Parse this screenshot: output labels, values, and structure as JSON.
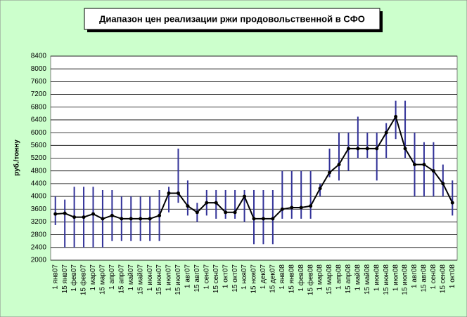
{
  "chart_data": {
    "type": "line-range",
    "title": "Диапазон цен реализации ржи продовольственной в СФО",
    "y_label": "руб./тонну",
    "categories": [
      "1 янв07",
      "15 янв07",
      "1 фев07",
      "15 фев07",
      "1 мар07",
      "15 мар07",
      "1 апр07",
      "15 апр07",
      "1 май07",
      "15 май07",
      "1 июн07",
      "15 июн07",
      "1 июл07",
      "15 июл07",
      "1 авг07",
      "15 авг07",
      "1 сен07",
      "15 сен07",
      "1 окт07",
      "15 окт07",
      "1 ноя07",
      "15 ноя07",
      "1 дек07",
      "15 дек07",
      "1 янв08",
      "15 янв08",
      "1 фев08",
      "15 фев08",
      "1 мар08",
      "15 мар08",
      "1 апр08",
      "15 апр08",
      "1 май08",
      "15 май08",
      "1 июн08",
      "15 июн08",
      "1 июл08",
      "15 июл08",
      "1 авг08",
      "15 авг08",
      "1 сен08",
      "15 сен08",
      "1 окт08"
    ],
    "values": [
      3450,
      3470,
      3350,
      3350,
      3450,
      3300,
      3400,
      3300,
      3300,
      3300,
      3300,
      3400,
      4100,
      4100,
      3700,
      3500,
      3800,
      3800,
      3500,
      3500,
      4000,
      3300,
      3300,
      3300,
      3600,
      3650,
      3650,
      3700,
      4250,
      4750,
      5000,
      5500,
      5500,
      5500,
      5500,
      6000,
      6500,
      5500,
      5000,
      5000,
      4800,
      4400,
      3800
    ],
    "high": [
      4000,
      3900,
      4300,
      4300,
      4300,
      4200,
      4200,
      4000,
      4000,
      4000,
      4000,
      4200,
      4300,
      5500,
      4500,
      3800,
      4200,
      4200,
      4200,
      4200,
      4200,
      4200,
      4200,
      4200,
      4800,
      4800,
      4800,
      4800,
      4400,
      5500,
      6000,
      6000,
      6500,
      6000,
      6000,
      6300,
      7000,
      7000,
      6000,
      5700,
      5700,
      5000,
      4500
    ],
    "low": [
      3100,
      2400,
      2400,
      2400,
      2400,
      2400,
      2600,
      2600,
      2600,
      2600,
      2600,
      2600,
      3500,
      3800,
      3400,
      3200,
      3400,
      3300,
      3300,
      3300,
      3200,
      2500,
      2500,
      2500,
      3300,
      3300,
      3300,
      3300,
      4000,
      4600,
      4500,
      4800,
      5200,
      5200,
      4500,
      5200,
      5800,
      5200,
      4000,
      4000,
      4000,
      4000,
      3400
    ],
    "line_color": "#000000",
    "range_color": "#333399",
    "ylim": [
      2000,
      8400
    ],
    "yticks": [
      2000,
      2400,
      2800,
      3200,
      3600,
      4000,
      4400,
      4800,
      5200,
      5600,
      6000,
      6400,
      6800,
      7200,
      7600,
      8000,
      8400
    ],
    "grid": true
  }
}
